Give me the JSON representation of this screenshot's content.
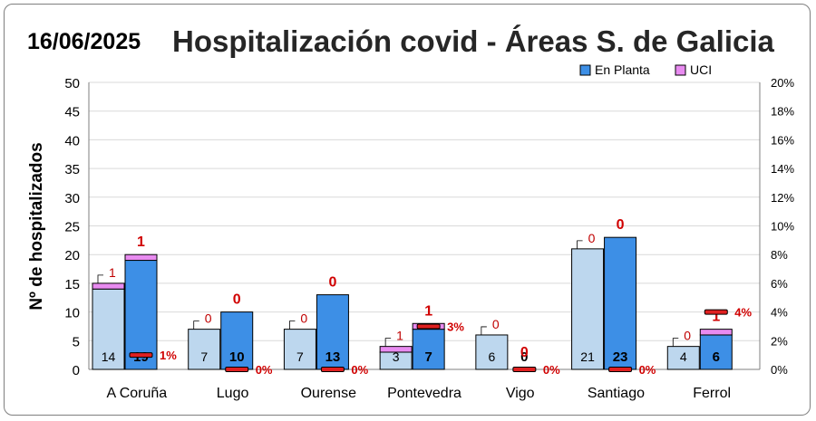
{
  "chart_data": {
    "type": "bar",
    "date": "16/06/2025",
    "title": "Hospitalización covid - Áreas S. de Galicia",
    "ylabel": "Nº de hospitalizados",
    "ylim": [
      0,
      50
    ],
    "yticks": [
      "0",
      "5",
      "10",
      "15",
      "20",
      "25",
      "30",
      "35",
      "40",
      "45",
      "50"
    ],
    "y2lim": [
      0,
      20
    ],
    "y2ticks": [
      "0%",
      "2%",
      "4%",
      "6%",
      "8%",
      "10%",
      "12%",
      "14%",
      "16%",
      "18%",
      "20%"
    ],
    "legend": {
      "position": "top-right",
      "entries": [
        "En Planta",
        "UCI"
      ]
    },
    "categories": [
      "A Coruña",
      "Lugo",
      "Ourense",
      "Pontevedra",
      "Vigo",
      "Santiago",
      "Ferrol"
    ],
    "series": [
      {
        "kind": "previous",
        "planta": [
          14,
          7,
          7,
          3,
          6,
          21,
          4
        ],
        "uci": [
          1,
          0,
          0,
          1,
          0,
          0,
          0
        ],
        "planta_labels": [
          "14",
          "7",
          "7",
          "3",
          "6",
          "21",
          "4"
        ],
        "uci_labels": [
          "1",
          "0",
          "0",
          "1",
          "0",
          "0",
          "0"
        ]
      },
      {
        "kind": "current",
        "planta": [
          19,
          10,
          13,
          7,
          0,
          23,
          6
        ],
        "uci": [
          1,
          0,
          0,
          1,
          0,
          0,
          1
        ],
        "planta_labels": [
          "19",
          "10",
          "13",
          "7",
          "0",
          "23",
          "6"
        ],
        "uci_labels": [
          "1",
          "0",
          "0",
          "1",
          "0",
          "0",
          "1"
        ]
      }
    ],
    "uci_percent": [
      1,
      0,
      0,
      3,
      0,
      0,
      4
    ],
    "uci_percent_labels": [
      "1%",
      "0%",
      "0%",
      "3%",
      "0%",
      "0%",
      "4%"
    ],
    "colors": {
      "previous_planta": "#bdd7ee",
      "current_planta": "#3d8fe6",
      "uci": "#e88bf0",
      "percent_marker": "#e02020",
      "uci_label": "#d00000",
      "prev_uci_label": "#c00000"
    }
  }
}
